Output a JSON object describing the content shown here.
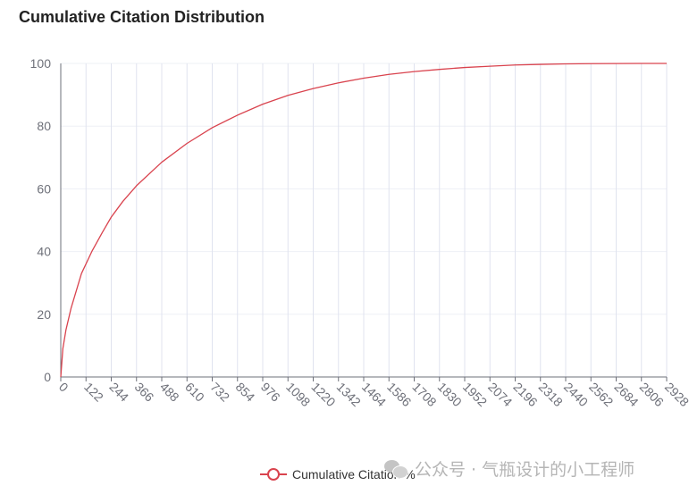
{
  "chart_data": {
    "type": "line",
    "title": "Cumulative Citation Distribution",
    "xlabel": "",
    "ylabel": "",
    "ylim": [
      0,
      100
    ],
    "xlim": [
      0,
      2928
    ],
    "grid": true,
    "legend_position": "bottom-center",
    "series_color": "#d9434e",
    "series": [
      {
        "name": "Cumulative Citation %",
        "points": [
          [
            0,
            0
          ],
          [
            10,
            9
          ],
          [
            25,
            15
          ],
          [
            50,
            22
          ],
          [
            100,
            33
          ],
          [
            150,
            40
          ],
          [
            200,
            46
          ],
          [
            244,
            51
          ],
          [
            300,
            56
          ],
          [
            366,
            61
          ],
          [
            488,
            68.5
          ],
          [
            610,
            74.5
          ],
          [
            732,
            79.5
          ],
          [
            854,
            83.5
          ],
          [
            976,
            87
          ],
          [
            1098,
            89.8
          ],
          [
            1220,
            92
          ],
          [
            1342,
            93.8
          ],
          [
            1464,
            95.3
          ],
          [
            1586,
            96.5
          ],
          [
            1708,
            97.4
          ],
          [
            1830,
            98.1
          ],
          [
            1952,
            98.7
          ],
          [
            2074,
            99.1
          ],
          [
            2196,
            99.5
          ],
          [
            2318,
            99.7
          ],
          [
            2440,
            99.85
          ],
          [
            2562,
            99.93
          ],
          [
            2684,
            99.97
          ],
          [
            2806,
            100
          ],
          [
            2928,
            100
          ]
        ]
      }
    ],
    "x_ticks": [
      "0",
      "122",
      "244",
      "366",
      "488",
      "610",
      "732",
      "854",
      "976",
      "1098",
      "1220",
      "1342",
      "1464",
      "1586",
      "1708",
      "1830",
      "1952",
      "2074",
      "2196",
      "2318",
      "2440",
      "2562",
      "2684",
      "2806",
      "2928"
    ],
    "y_ticks": [
      "0",
      "20",
      "40",
      "60",
      "80",
      "100"
    ]
  },
  "watermark": {
    "text": "公众号 · 气瓶设计的小工程师",
    "icon": "wechat-icon"
  }
}
